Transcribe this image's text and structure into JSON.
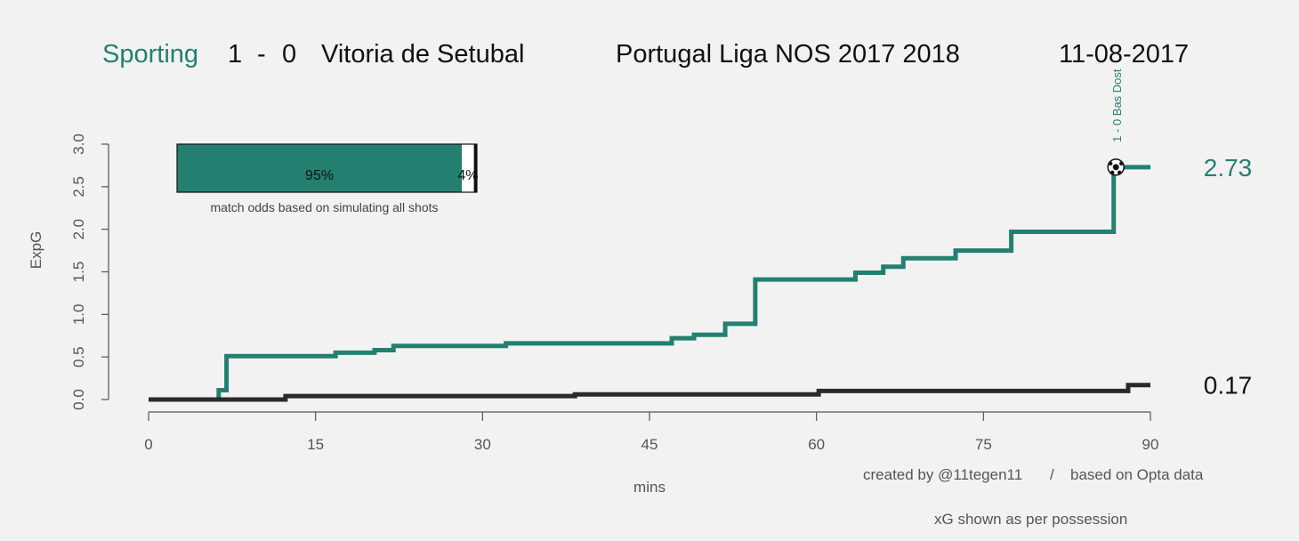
{
  "header": {
    "home_team": "Sporting",
    "score_home": "1",
    "score_sep": "-",
    "score_away": "0",
    "away_team": "Vitoria de Setubal",
    "competition": "Portugal Liga NOS 2017 2018",
    "date": "11-08-2017"
  },
  "colors": {
    "home": "#238070",
    "away": "#2a2a2a",
    "background": "#f2f2f2",
    "axis": "#555555"
  },
  "odds": {
    "home_win_pct": 95,
    "home_label": "95%",
    "draw_pct": 4,
    "draw_label": "4%",
    "away_win_pct": 1,
    "caption": "match odds based on simulating all shots"
  },
  "credits": {
    "created_by": "created by @11tegen11",
    "separator": "/",
    "source": "based on Opta data",
    "note": "xG shown as per possession"
  },
  "chart_data": {
    "type": "line",
    "step": true,
    "xlabel": "mins",
    "ylabel": "ExpG",
    "xlim": [
      0,
      90
    ],
    "ylim": [
      0,
      3.0
    ],
    "x_ticks": [
      "0",
      "15",
      "30",
      "45",
      "60",
      "75",
      "90"
    ],
    "y_ticks": [
      "0.0",
      "0.5",
      "1.0",
      "1.5",
      "2.0",
      "2.5",
      "3.0"
    ],
    "series": [
      {
        "name": "Sporting",
        "color": "#238070",
        "final_label": "2.73",
        "points": [
          [
            0,
            0
          ],
          [
            6.3,
            0.11
          ],
          [
            7.0,
            0.51
          ],
          [
            16.8,
            0.55
          ],
          [
            20.3,
            0.58
          ],
          [
            22.0,
            0.63
          ],
          [
            32.1,
            0.66
          ],
          [
            47.0,
            0.72
          ],
          [
            49.0,
            0.76
          ],
          [
            51.8,
            0.89
          ],
          [
            54.5,
            1.41
          ],
          [
            63.5,
            1.49
          ],
          [
            66.0,
            1.56
          ],
          [
            67.8,
            1.66
          ],
          [
            72.5,
            1.75
          ],
          [
            77.5,
            1.97
          ],
          [
            86.7,
            2.73
          ],
          [
            90,
            2.73
          ]
        ]
      },
      {
        "name": "Vitoria de Setubal",
        "color": "#2a2a2a",
        "final_label": "0.17",
        "points": [
          [
            0,
            0
          ],
          [
            12.3,
            0.04
          ],
          [
            38.3,
            0.06
          ],
          [
            60.2,
            0.1
          ],
          [
            88.0,
            0.17
          ],
          [
            90,
            0.17
          ]
        ]
      }
    ],
    "goals": [
      {
        "minute": 86.9,
        "xg": 2.73,
        "label": "1 - 0 Bas Dost"
      }
    ]
  }
}
